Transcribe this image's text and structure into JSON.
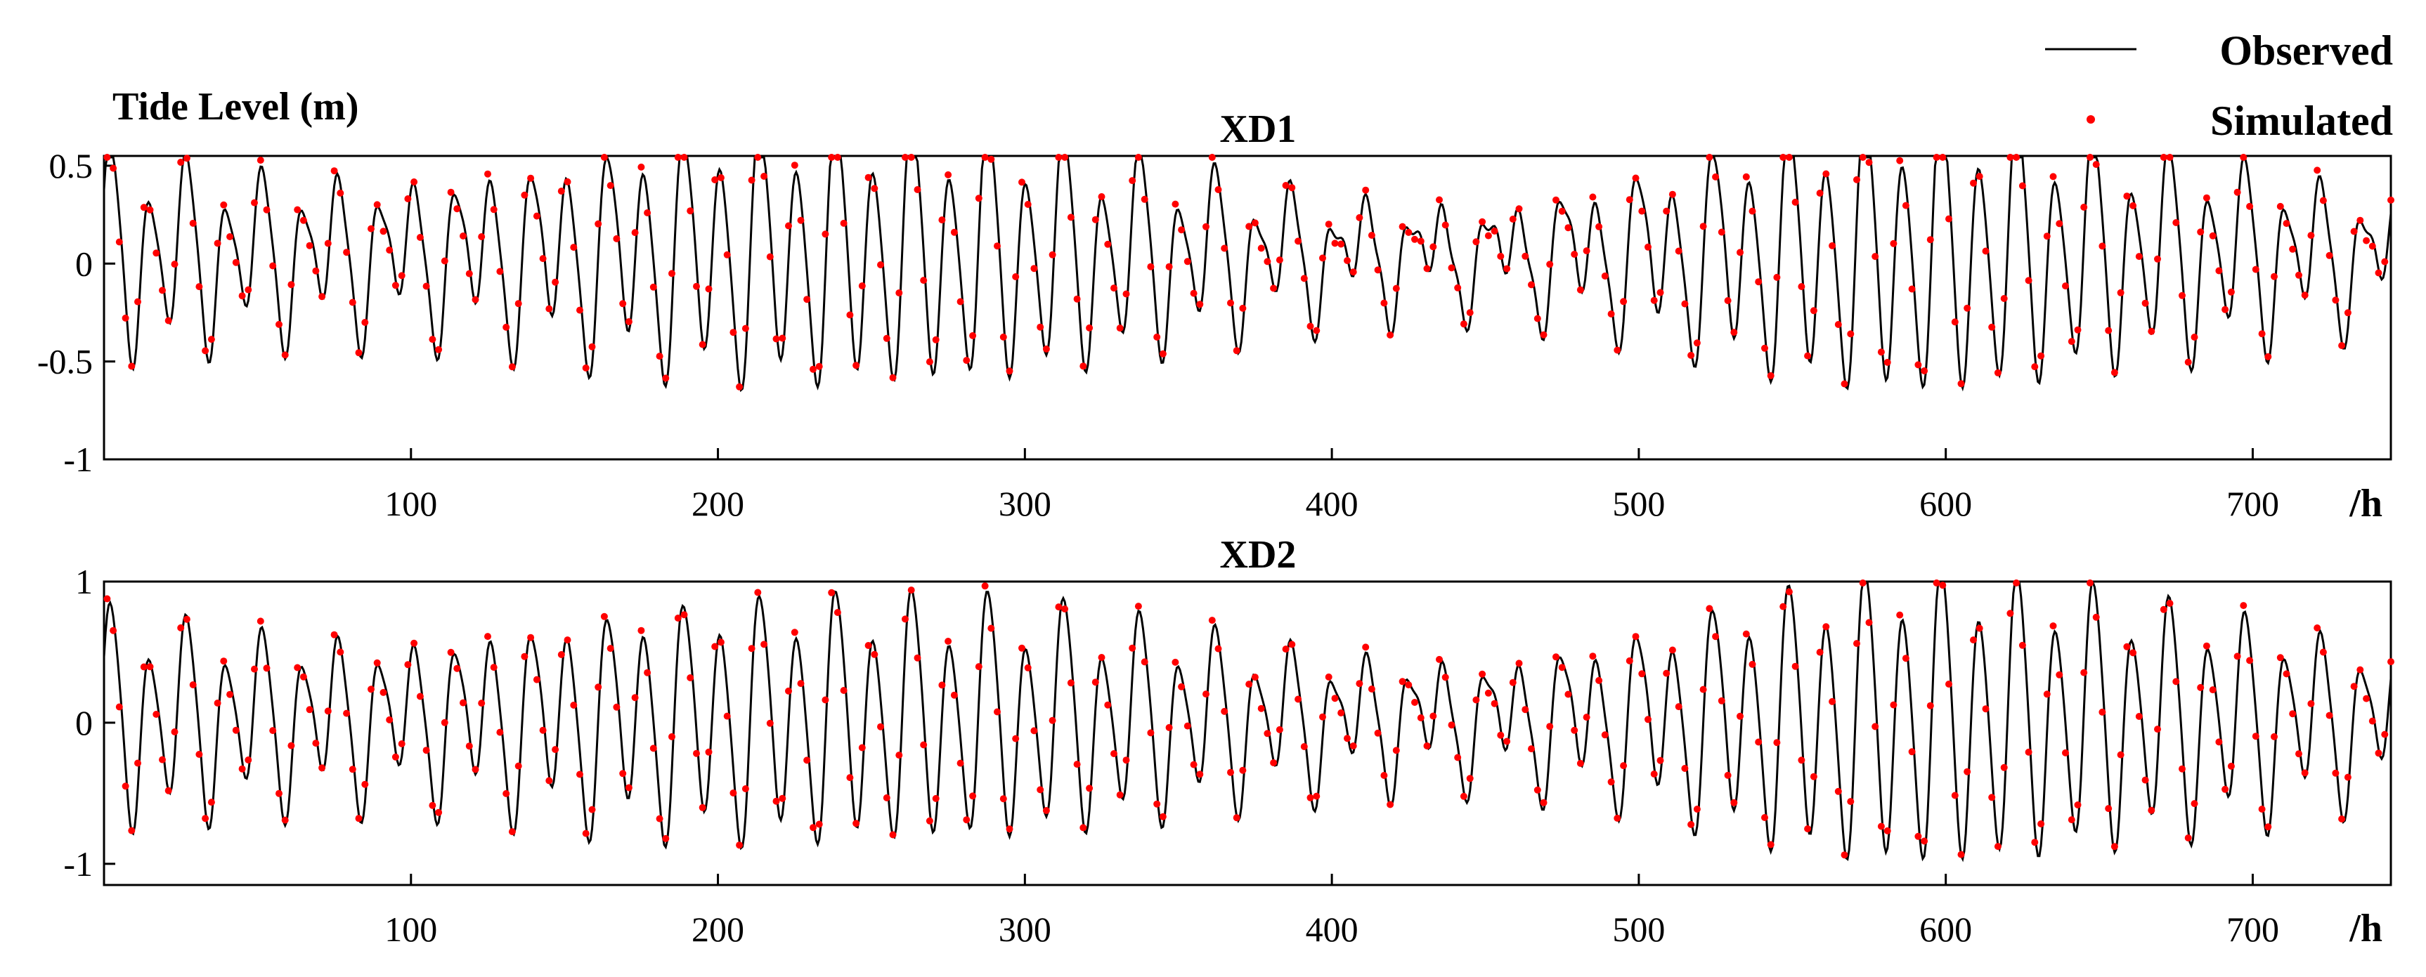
{
  "figure": {
    "ylabel": "Tide Level (m)",
    "x_unit": "/h"
  },
  "legend": {
    "placement": "top-right",
    "entries": [
      {
        "label": "Observed",
        "marker": "line",
        "color": "#000000"
      },
      {
        "label": "Simulated",
        "marker": "dot",
        "color": "#ff0000"
      }
    ]
  },
  "chart_data": [
    {
      "type": "line",
      "title": "XD1",
      "xlim": [
        0,
        745
      ],
      "ylim": [
        -1,
        0.55
      ],
      "xticks": [
        100,
        200,
        300,
        400,
        500,
        600,
        700
      ],
      "yticks": [
        0.5,
        0,
        -0.5,
        -1
      ],
      "ytick_labels": [
        "0.5",
        "0",
        "-0.5",
        "-1"
      ],
      "grid": false,
      "series": [
        {
          "name": "Observed",
          "style": "line",
          "color": "#000000",
          "model": {
            "mean": 0.04,
            "m2_period_h": 12.42,
            "m2_phase_rad": 1.3,
            "k1_period_h": 23.93,
            "k1_phase_rad": 0.2,
            "m4_period_h": 6.21,
            "m4_phase_rad": 0.6,
            "m2_amp_envelope": [
              [
                0,
                0.46
              ],
              [
                50,
                0.34
              ],
              [
                100,
                0.31
              ],
              [
                150,
                0.42
              ],
              [
                200,
                0.55
              ],
              [
                250,
                0.58
              ],
              [
                300,
                0.54
              ],
              [
                350,
                0.38
              ],
              [
                400,
                0.22
              ],
              [
                450,
                0.17
              ],
              [
                500,
                0.34
              ],
              [
                550,
                0.55
              ],
              [
                580,
                0.62
              ],
              [
                610,
                0.62
              ],
              [
                650,
                0.5
              ],
              [
                700,
                0.38
              ],
              [
                745,
                0.22
              ]
            ],
            "k1_amp_envelope": [
              [
                0,
                0.16
              ],
              [
                745,
                0.16
              ]
            ],
            "m4_amp_envelope": [
              [
                0,
                0.07
              ],
              [
                745,
                0.07
              ]
            ]
          }
        },
        {
          "name": "Simulated",
          "style": "dots",
          "color": "#ff0000",
          "sample_step_h": 2,
          "model": {
            "mean": 0.04,
            "m2_period_h": 12.42,
            "m2_phase_rad": 1.0,
            "k1_period_h": 23.93,
            "k1_phase_rad": 0.1,
            "m4_period_h": 6.21,
            "m4_phase_rad": 0.4,
            "m2_amp_envelope": [
              [
                0,
                0.46
              ],
              [
                50,
                0.34
              ],
              [
                100,
                0.31
              ],
              [
                150,
                0.42
              ],
              [
                200,
                0.55
              ],
              [
                250,
                0.58
              ],
              [
                300,
                0.54
              ],
              [
                350,
                0.38
              ],
              [
                400,
                0.22
              ],
              [
                450,
                0.17
              ],
              [
                500,
                0.34
              ],
              [
                550,
                0.55
              ],
              [
                580,
                0.62
              ],
              [
                610,
                0.62
              ],
              [
                650,
                0.5
              ],
              [
                700,
                0.38
              ],
              [
                745,
                0.22
              ]
            ],
            "k1_amp_envelope": [
              [
                0,
                0.16
              ],
              [
                745,
                0.16
              ]
            ],
            "m4_amp_envelope": [
              [
                0,
                0.08
              ],
              [
                745,
                0.08
              ]
            ]
          }
        }
      ]
    },
    {
      "type": "line",
      "title": "XD2",
      "xlim": [
        0,
        745
      ],
      "ylim": [
        -1.15,
        1
      ],
      "xticks": [
        100,
        200,
        300,
        400,
        500,
        600,
        700
      ],
      "yticks": [
        1,
        0,
        -1
      ],
      "ytick_labels": [
        "1",
        "0",
        "-1"
      ],
      "grid": false,
      "series": [
        {
          "name": "Observed",
          "style": "line",
          "color": "#000000",
          "model": {
            "mean": 0.02,
            "m2_period_h": 12.42,
            "m2_phase_rad": 1.3,
            "k1_period_h": 23.93,
            "k1_phase_rad": 0.2,
            "m4_period_h": 6.21,
            "m4_phase_rad": 0.6,
            "m2_amp_envelope": [
              [
                0,
                0.66
              ],
              [
                50,
                0.52
              ],
              [
                100,
                0.46
              ],
              [
                150,
                0.62
              ],
              [
                200,
                0.74
              ],
              [
                250,
                0.76
              ],
              [
                300,
                0.72
              ],
              [
                350,
                0.56
              ],
              [
                400,
                0.38
              ],
              [
                450,
                0.32
              ],
              [
                500,
                0.52
              ],
              [
                550,
                0.82
              ],
              [
                580,
                0.92
              ],
              [
                610,
                0.92
              ],
              [
                650,
                0.8
              ],
              [
                700,
                0.62
              ],
              [
                745,
                0.4
              ]
            ],
            "k1_amp_envelope": [
              [
                0,
                0.2
              ],
              [
                745,
                0.2
              ]
            ],
            "m4_amp_envelope": [
              [
                0,
                0.09
              ],
              [
                745,
                0.09
              ]
            ]
          }
        },
        {
          "name": "Simulated",
          "style": "dots",
          "color": "#ff0000",
          "sample_step_h": 2,
          "model": {
            "mean": 0.02,
            "m2_period_h": 12.42,
            "m2_phase_rad": 1.0,
            "k1_period_h": 23.93,
            "k1_phase_rad": 0.1,
            "m4_period_h": 6.21,
            "m4_phase_rad": 0.4,
            "m2_amp_envelope": [
              [
                0,
                0.66
              ],
              [
                50,
                0.52
              ],
              [
                100,
                0.46
              ],
              [
                150,
                0.62
              ],
              [
                200,
                0.74
              ],
              [
                250,
                0.76
              ],
              [
                300,
                0.72
              ],
              [
                350,
                0.56
              ],
              [
                400,
                0.38
              ],
              [
                450,
                0.32
              ],
              [
                500,
                0.52
              ],
              [
                550,
                0.82
              ],
              [
                580,
                0.92
              ],
              [
                610,
                0.92
              ],
              [
                650,
                0.8
              ],
              [
                700,
                0.62
              ],
              [
                745,
                0.4
              ]
            ],
            "k1_amp_envelope": [
              [
                0,
                0.2
              ],
              [
                745,
                0.2
              ]
            ],
            "m4_amp_envelope": [
              [
                0,
                0.1
              ],
              [
                745,
                0.1
              ]
            ]
          }
        }
      ]
    }
  ]
}
